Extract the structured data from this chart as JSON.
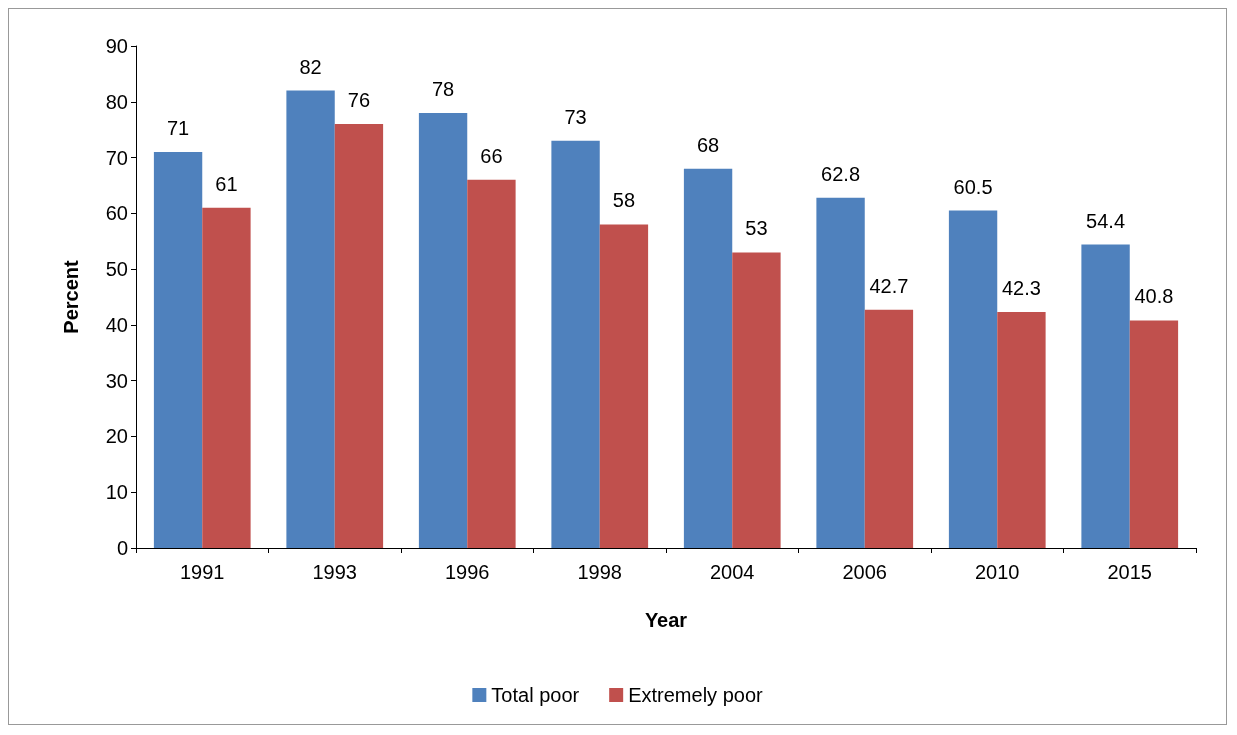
{
  "chart_data": {
    "type": "bar",
    "xlabel": "Year",
    "ylabel": "Percent",
    "categories": [
      "1991",
      "1993",
      "1996",
      "1998",
      "2004",
      "2006",
      "2010",
      "2015"
    ],
    "series": [
      {
        "name": "Total poor",
        "color": "#4f81bd",
        "values": [
          71,
          82,
          78,
          73,
          68,
          62.8,
          60.5,
          54.4
        ]
      },
      {
        "name": "Extremely poor",
        "color": "#c0504d",
        "values": [
          61,
          76,
          66,
          58,
          53,
          42.7,
          42.3,
          40.8
        ]
      }
    ],
    "ylim": [
      0,
      90
    ],
    "yticks": [
      0,
      10,
      20,
      30,
      40,
      50,
      60,
      70,
      80,
      90
    ],
    "grid": false,
    "legend": "bottom",
    "data_labels": true
  }
}
